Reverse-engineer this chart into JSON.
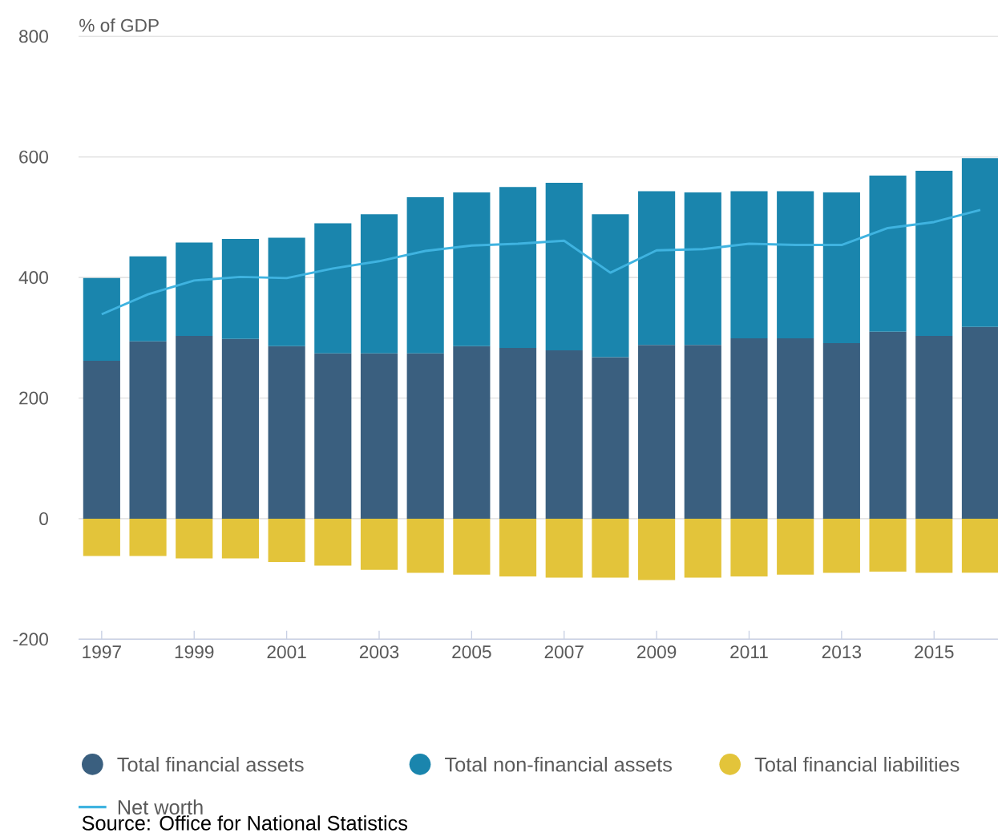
{
  "chart_data": {
    "type": "bar",
    "stacked": true,
    "ylabel": "% of GDP",
    "categories": [
      "1997",
      null,
      "1999",
      null,
      "2001",
      null,
      "2003",
      null,
      "2005",
      null,
      "2007",
      null,
      "2009",
      null,
      "2011",
      null,
      "2013",
      null,
      "2015",
      null
    ],
    "series": [
      {
        "name": "Total financial assets",
        "color": "#3a5f7f",
        "values": [
          262,
          294,
          303,
          298,
          286,
          274,
          274,
          274,
          286,
          283,
          279,
          268,
          288,
          288,
          299,
          299,
          291,
          310,
          303,
          318
        ]
      },
      {
        "name": "Total non-financial assets",
        "color": "#1a85ad",
        "values": [
          137,
          141,
          155,
          166,
          180,
          216,
          231,
          259,
          255,
          267,
          278,
          237,
          255,
          253,
          244,
          244,
          250,
          259,
          274,
          280
        ]
      },
      {
        "name": "Total financial liabilities",
        "color": "#e3c43a",
        "values": [
          -62,
          -62,
          -66,
          -66,
          -72,
          -78,
          -85,
          -90,
          -93,
          -96,
          -98,
          -98,
          -102,
          -98,
          -96,
          -93,
          -90,
          -88,
          -90,
          -90
        ]
      },
      {
        "name": "Net worth",
        "type": "line",
        "color": "#3fb3e0",
        "values": [
          339,
          372,
          395,
          401,
          399,
          415,
          427,
          444,
          453,
          456,
          461,
          408,
          445,
          447,
          456,
          454,
          454,
          482,
          492,
          512
        ]
      }
    ],
    "ylim": [
      -200,
      800
    ],
    "yticks": [
      -200,
      0,
      200,
      400,
      600,
      800
    ],
    "grid": "y",
    "legend": "bottom",
    "annotations": [
      "Source: Office for National Statistics"
    ]
  }
}
